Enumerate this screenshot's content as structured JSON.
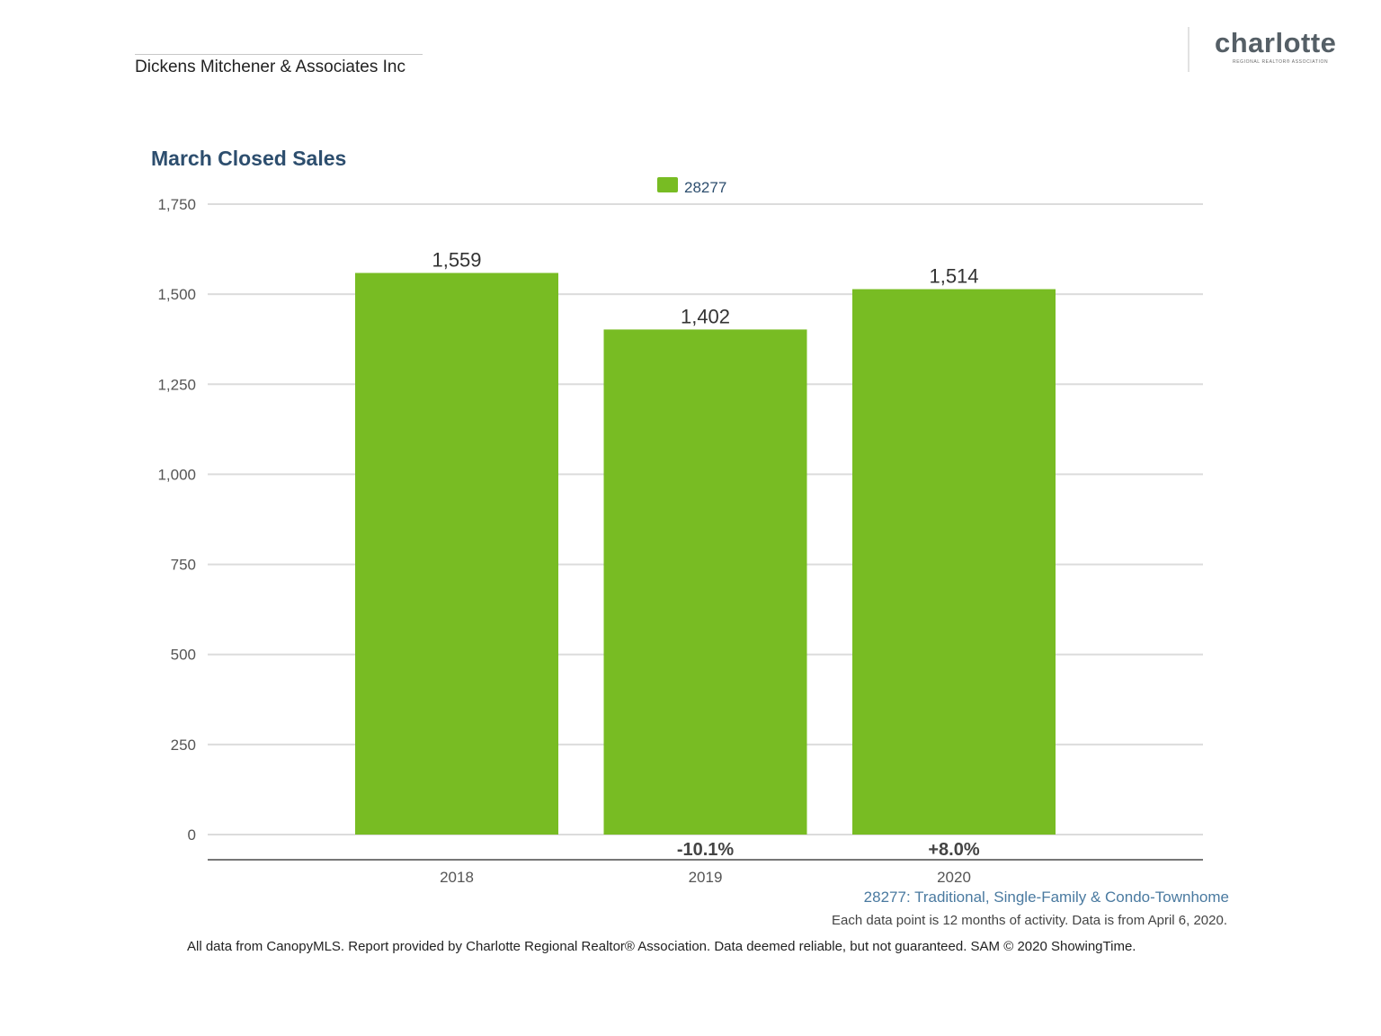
{
  "header": {
    "company": "Dickens Mitchener & Associates Inc",
    "logo_word": "charlotte",
    "logo_sub": "REGIONAL REALTOR® ASSOCIATION"
  },
  "chart_data": {
    "type": "bar",
    "title": "March Closed Sales",
    "categories": [
      "2018",
      "2019",
      "2020"
    ],
    "series": [
      {
        "name": "28277",
        "values": [
          1559,
          1402,
          1514
        ],
        "color": "#78bc23"
      }
    ],
    "value_labels": [
      "1,559",
      "1,402",
      "1,514"
    ],
    "change_labels": [
      "",
      "-10.1%",
      "+8.0%"
    ],
    "yticks": [
      {
        "value": 0,
        "label": "0"
      },
      {
        "value": 250,
        "label": "250"
      },
      {
        "value": 500,
        "label": "500"
      },
      {
        "value": 750,
        "label": "750"
      },
      {
        "value": 1000,
        "label": "1,000"
      },
      {
        "value": 1250,
        "label": "1,250"
      },
      {
        "value": 1500,
        "label": "1,500"
      },
      {
        "value": 1750,
        "label": "1,750"
      }
    ],
    "ylim": [
      0,
      1750
    ],
    "grid": true,
    "legend": "top-center",
    "xlabel": "",
    "ylabel": ""
  },
  "footer": {
    "subtitle": "28277: Traditional, Single-Family & Condo-Townhome",
    "note": "Each data point is 12 months of activity. Data is from April 6, 2020.",
    "disclaimer": "All data from CanopyMLS. Report provided by Charlotte Regional Realtor® Association. Data deemed reliable, but not guaranteed. SAM © 2020 ShowingTime."
  }
}
